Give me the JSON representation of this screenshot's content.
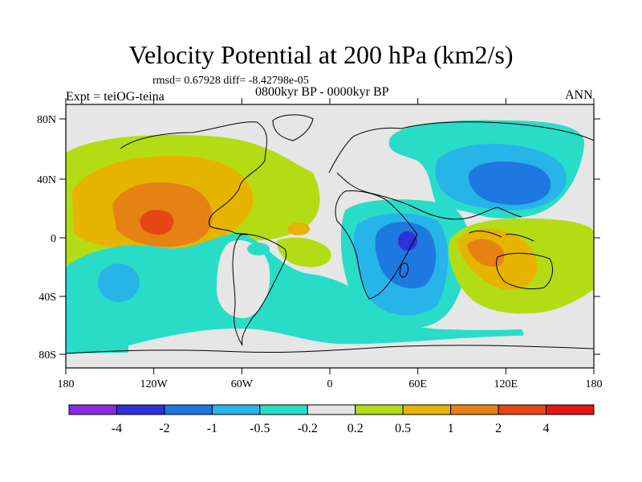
{
  "title": "Velocity Potential at 200 hPa (km2/s)",
  "stats": "rmsd= 0.67928 diff= -8.42798e-05",
  "experiment": "Expt = teiOG-teina",
  "period": "0800kyr BP - 0000kyr BP",
  "season": "ANN",
  "map": {
    "lat_ticks": [
      "80N",
      "40N",
      "0",
      "40S",
      "80S"
    ],
    "lon_ticks": [
      "180",
      "120W",
      "60W",
      "0",
      "60E",
      "120E",
      "180"
    ]
  },
  "colorbar": {
    "labels": [
      "-4",
      "-2",
      "-1",
      "-0.5",
      "-0.2",
      "0.2",
      "0.5",
      "1",
      "2",
      "4"
    ],
    "colors": [
      "#8a2be2",
      "#3030d8",
      "#1e78e0",
      "#27b4e8",
      "#28dcc8",
      "#e6e6e6",
      "#b4dc14",
      "#e6b400",
      "#e68214",
      "#e64614",
      "#e61414"
    ]
  }
}
